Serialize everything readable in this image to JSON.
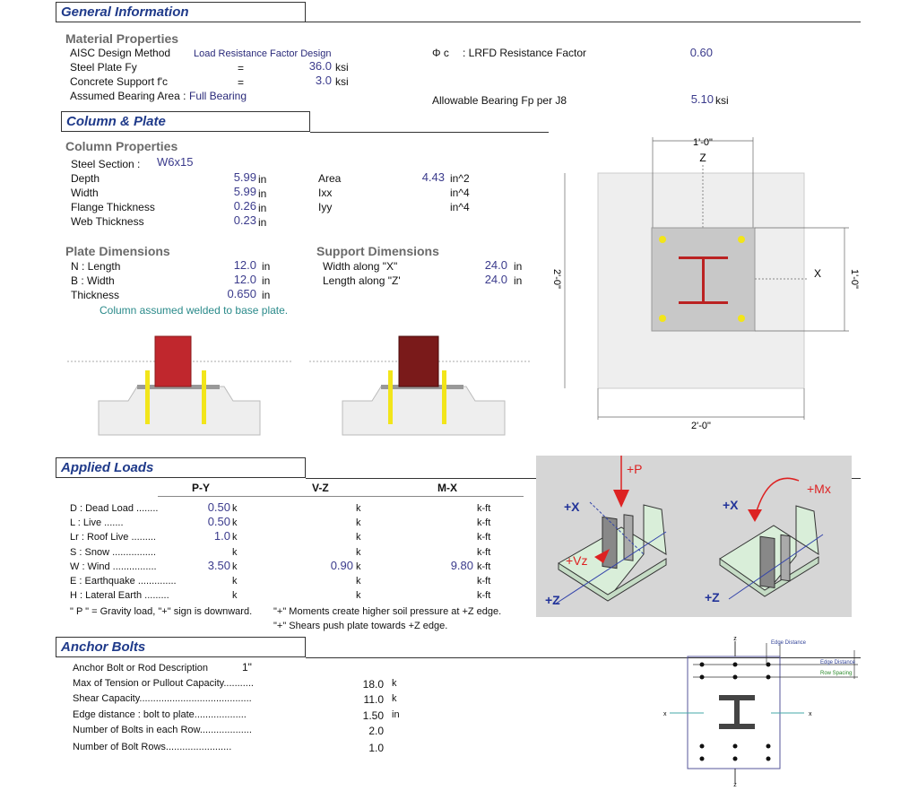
{
  "general": {
    "title": "General Information",
    "material_title": "Material Properties",
    "design_method_label": "AISC Design Method",
    "design_method_value": "Load Resistance Factor Design",
    "fy_label": "Steel Plate Fy",
    "fy_eq": "=",
    "fy_value": "36.0",
    "fy_unit": "ksi",
    "fc_label": "Concrete Support f'c",
    "fc_eq": "=",
    "fc_value": "3.0",
    "fc_unit": "ksi",
    "bearing_label": "Assumed Bearing Area :",
    "bearing_value": "Full Bearing",
    "phi_symbol": "Φ c",
    "phi_label": ": LRFD Resistance Factor",
    "phi_value": "0.60",
    "fp_label": "Allowable Bearing Fp per J8",
    "fp_value": "5.10",
    "fp_unit": "ksi"
  },
  "column_plate": {
    "title": "Column & Plate",
    "column_title": "Column Properties",
    "section_label": "Steel Section :",
    "section_value": "W6x15",
    "props": [
      {
        "label": "Depth",
        "value": "5.99",
        "unit": "in"
      },
      {
        "label": "Width",
        "value": "5.99",
        "unit": "in"
      },
      {
        "label": "Flange Thickness",
        "value": "0.26",
        "unit": "in"
      },
      {
        "label": "Web Thickness",
        "value": "0.23",
        "unit": "in"
      }
    ],
    "props2": [
      {
        "label": "Area",
        "value": "4.43",
        "unit": "in^2"
      },
      {
        "label": "Ixx",
        "value": "",
        "unit": "in^4"
      },
      {
        "label": "Iyy",
        "value": "",
        "unit": "in^4"
      }
    ],
    "plate_title": "Plate Dimensions",
    "plate": [
      {
        "label": "N : Length",
        "value": "12.0",
        "unit": "in"
      },
      {
        "label": "B : Width",
        "value": "12.0",
        "unit": "in"
      },
      {
        "label": "Thickness",
        "value": "0.650",
        "unit": "in"
      }
    ],
    "support_title": "Support Dimensions",
    "support": [
      {
        "label": "Width along \"X\"",
        "value": "24.0",
        "unit": "in"
      },
      {
        "label": "Length along \"Z'",
        "value": "24.0",
        "unit": "in"
      }
    ],
    "note": "Column assumed welded to base plate.",
    "plan": {
      "top_dim": "1'-0\"",
      "z_label": "Z",
      "x_label": "X",
      "left_dim": "2'-0\"",
      "right_dim": "1'-0\"",
      "bottom_dim": "2'-0\""
    },
    "colors": {
      "column": "#c0272d",
      "column_dark": "#7a1a1a",
      "bolt": "#f2e51a",
      "plate": "#c8c8c8"
    }
  },
  "loads": {
    "title": "Applied Loads",
    "headers": [
      "P-Y",
      "V-Z",
      "M-X"
    ],
    "rows": [
      {
        "label": "D : Dead Load ........",
        "p": "0.50",
        "pu": "k",
        "v": "",
        "vu": "k",
        "m": "",
        "mu": "k-ft"
      },
      {
        "label": "L : Live .......",
        "p": "0.50",
        "pu": "k",
        "v": "",
        "vu": "k",
        "m": "",
        "mu": "k-ft"
      },
      {
        "label": "Lr : Roof Live .........",
        "p": "1.0",
        "pu": "k",
        "v": "",
        "vu": "k",
        "m": "",
        "mu": "k-ft"
      },
      {
        "label": "S : Snow ................",
        "p": "",
        "pu": "k",
        "v": "",
        "vu": "k",
        "m": "",
        "mu": "k-ft"
      },
      {
        "label": "W : Wind ................",
        "p": "3.50",
        "pu": "k",
        "v": "0.90",
        "vu": "k",
        "m": "9.80",
        "mu": "k-ft"
      },
      {
        "label": "E : Earthquake ..............",
        "p": "",
        "pu": "k",
        "v": "",
        "vu": "k",
        "m": "",
        "mu": "k-ft"
      },
      {
        "label": "H : Lateral Earth .........",
        "p": "",
        "pu": "k",
        "v": "",
        "vu": "k",
        "m": "",
        "mu": "k-ft"
      }
    ],
    "note_p": "\" P \" = Gravity load, \"+\" sign is downward.",
    "note_m": "\"+\"  Moments create higher soil pressure at +Z edge.",
    "note_v": "\"+\"  Shears push plate towards +Z edge.",
    "iso": {
      "p": "+P",
      "vz": "+Vz",
      "mx": "+Mx",
      "x1": "+X",
      "z1": "+Z",
      "x2": "+X",
      "z2": "+Z"
    }
  },
  "anchor": {
    "title": "Anchor Bolts",
    "desc_label": "Anchor Bolt or Rod Description",
    "desc_value": "1\"",
    "rows": [
      {
        "label": "Max of Tension or Pullout Capacity...........",
        "value": "18.0",
        "unit": "k"
      },
      {
        "label": "Shear Capacity.........................................",
        "value": "11.0",
        "unit": "k"
      },
      {
        "label": "Edge distance : bolt to plate...................",
        "value": "1.50",
        "unit": "in"
      },
      {
        "label": "Number of Bolts in each Row...................",
        "value": "2.0",
        "unit": ""
      },
      {
        "label": "Number of Bolt Rows........................",
        "value": "1.0",
        "unit": ""
      }
    ],
    "diagram": {
      "edge_top": "Edge Distance",
      "edge_right": "Edge Distance",
      "row_spacing": "Row Spacing",
      "z": "z",
      "x": "x"
    }
  }
}
